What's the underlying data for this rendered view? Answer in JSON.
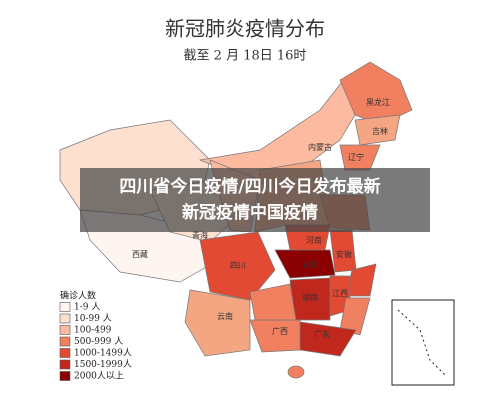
{
  "header": {
    "title": "新冠肺炎疫情分布",
    "subtitle": "截至 2 月 18日 16时"
  },
  "banner": {
    "line1": "四川省今日疫情/四川今日发布最新",
    "line2": "新冠疫情中国疫情"
  },
  "legend": {
    "title": "确诊人数",
    "items": [
      {
        "label": "1-9 人",
        "color": "#fff5f0"
      },
      {
        "label": "10-99 人",
        "color": "#fde0d0"
      },
      {
        "label": "100-499",
        "color": "#fcbba1"
      },
      {
        "label": "500-999 人",
        "color": "#f08060"
      },
      {
        "label": "1000-1499人",
        "color": "#e34a33"
      },
      {
        "label": "1500-1999人",
        "color": "#c0281e"
      },
      {
        "label": "2000人以上",
        "color": "#8b0000"
      }
    ]
  },
  "provinces": [
    {
      "label": "黑龙江"
    },
    {
      "label": "吉林"
    },
    {
      "label": "辽宁"
    },
    {
      "label": "内蒙古"
    },
    {
      "label": "西藏"
    },
    {
      "label": "青海"
    },
    {
      "label": "四川"
    },
    {
      "label": "河南"
    },
    {
      "label": "湖北"
    },
    {
      "label": "安徽"
    },
    {
      "label": "湖南"
    },
    {
      "label": "江西"
    },
    {
      "label": "云南"
    },
    {
      "label": "广西"
    },
    {
      "label": "广东"
    }
  ]
}
